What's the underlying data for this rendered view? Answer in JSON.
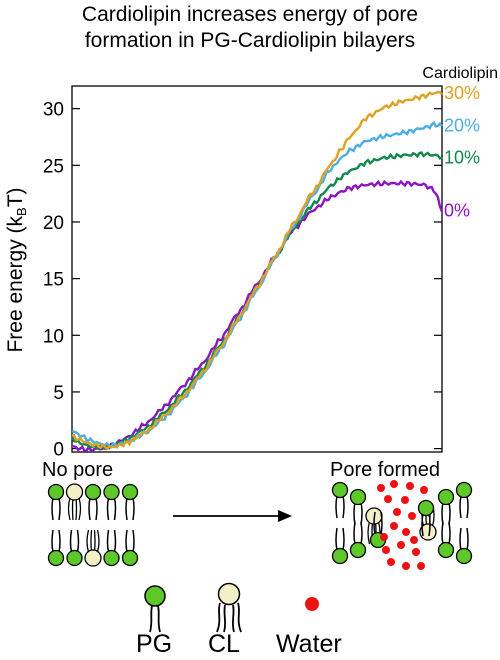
{
  "title_line1": "Cardiolipin increases energy of pore",
  "title_line2": "formation in PG-Cardiolipin bilayers",
  "chart_data": {
    "type": "line",
    "title": "Cardiolipin increases energy of pore formation in PG-Cardiolipin bilayers",
    "xlabel": "",
    "ylabel": "Free energy (kBT)",
    "ylabel_main": "Free energy (k",
    "ylabel_sub": "B",
    "ylabel_end": "T)",
    "ylim": [
      -0.3,
      32
    ],
    "yticks": [
      0,
      5,
      10,
      15,
      20,
      25,
      30
    ],
    "x_ticks_shown": false,
    "grid": false,
    "legend_title": "Cardiolipin",
    "legend_placement": "right",
    "x": [
      0,
      0.02,
      0.05,
      0.08,
      0.1,
      0.12,
      0.15,
      0.2,
      0.25,
      0.3,
      0.35,
      0.4,
      0.45,
      0.5,
      0.55,
      0.6,
      0.65,
      0.7,
      0.73,
      0.75,
      0.8,
      0.85,
      0.9,
      0.95,
      0.98,
      1.0
    ],
    "series": [
      {
        "name": "0%",
        "color": "#8b14c4",
        "values": [
          0.2,
          0.0,
          -0.1,
          0.0,
          0.2,
          0.5,
          1.0,
          2.2,
          3.7,
          5.5,
          7.4,
          9.6,
          12.0,
          14.5,
          17.0,
          19.4,
          21.0,
          22.2,
          22.7,
          23.0,
          23.3,
          23.4,
          23.4,
          23.3,
          22.8,
          21.0
        ]
      },
      {
        "name": "10%",
        "color": "#12884e",
        "values": [
          0.9,
          0.5,
          0.2,
          0.1,
          0.2,
          0.4,
          0.8,
          1.8,
          3.2,
          4.9,
          6.9,
          9.1,
          11.6,
          14.2,
          16.9,
          19.5,
          21.5,
          23.2,
          24.0,
          24.5,
          25.3,
          25.7,
          25.9,
          26.0,
          25.9,
          25.7
        ]
      },
      {
        "name": "20%",
        "color": "#4aaee6",
        "values": [
          1.6,
          1.2,
          0.7,
          0.4,
          0.3,
          0.3,
          0.6,
          1.4,
          2.7,
          4.4,
          6.4,
          8.7,
          11.3,
          14.0,
          16.9,
          19.7,
          22.3,
          24.7,
          25.7,
          26.3,
          27.2,
          27.6,
          27.9,
          28.3,
          28.6,
          28.5
        ]
      },
      {
        "name": "30%",
        "color": "#e0a020",
        "values": [
          1.1,
          0.8,
          0.4,
          0.2,
          0.1,
          0.2,
          0.5,
          1.5,
          2.9,
          4.6,
          6.6,
          8.9,
          11.5,
          14.2,
          17.0,
          19.9,
          22.6,
          25.1,
          26.5,
          27.5,
          29.3,
          30.2,
          30.7,
          31.1,
          31.4,
          31.4
        ]
      }
    ]
  },
  "diagram": {
    "no_pore_label": "No pore",
    "pore_formed_label": "Pore formed"
  },
  "key": {
    "pg_label": "PG",
    "cl_label": "CL",
    "water_label": "Water",
    "pg_color": "#5ec72a",
    "cl_color": "#f3f0c8",
    "water_color": "#ee1111"
  }
}
